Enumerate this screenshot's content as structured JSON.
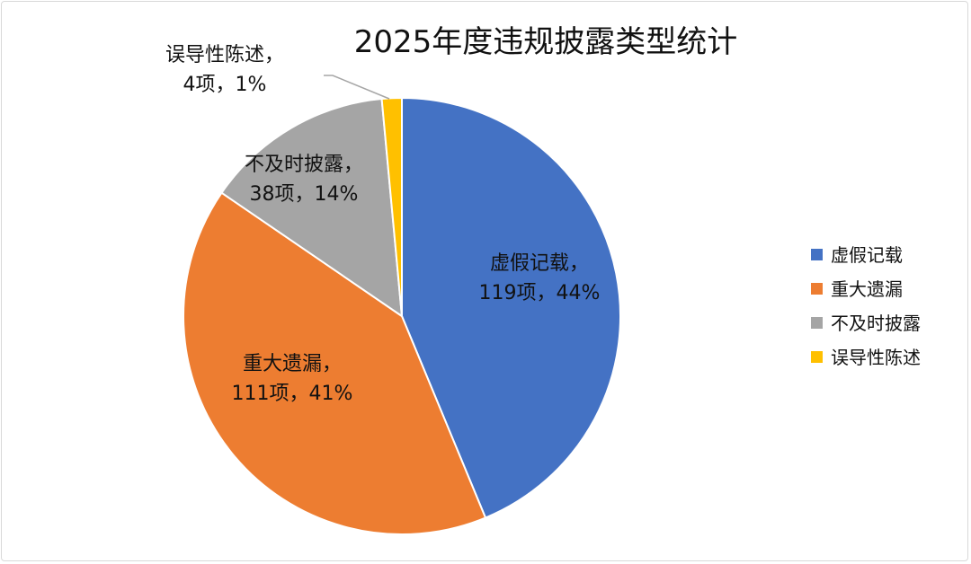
{
  "chart_data": {
    "type": "pie",
    "title": "2025年度违规披露类型统计",
    "legend_position": "right",
    "categories": [
      "虚假记载",
      "重大遗漏",
      "不及时披露",
      "误导性陈述"
    ],
    "values": [
      119,
      111,
      38,
      4
    ],
    "percent_labels": [
      "44%",
      "41%",
      "14%",
      "1%"
    ],
    "count_labels": [
      "119项",
      "111项",
      "38项",
      "4项"
    ],
    "colors": [
      "#4472C4",
      "#ED7D31",
      "#A5A5A5",
      "#FFC000"
    ]
  }
}
